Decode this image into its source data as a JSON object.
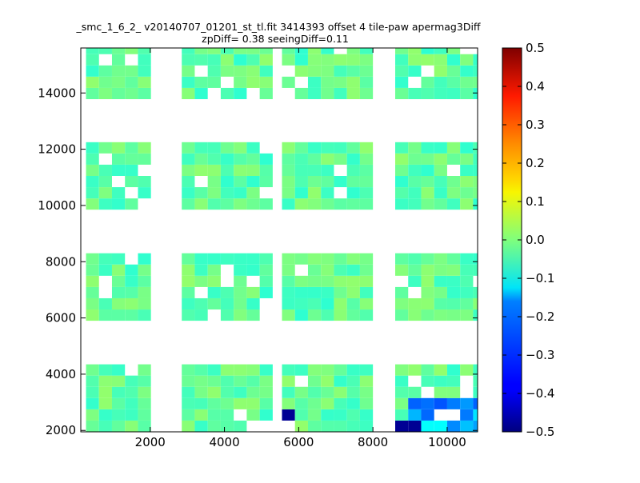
{
  "chart_data": {
    "type": "heatmap",
    "title_line1": "_smc_1_6_2_ v20140707_01201_st_tl.fit 3414393 offset 4 tile-paw apermag3Diff",
    "title_line2": "zpDiff= 0.38 seeingDiff=0.11",
    "xlabel": "",
    "ylabel": "",
    "xlim": [
      130,
      10820
    ],
    "ylim": [
      1950,
      15600
    ],
    "xticks": [
      2000,
      4000,
      6000,
      8000,
      10000
    ],
    "yticks": [
      2000,
      4000,
      6000,
      8000,
      10000,
      12000,
      14000
    ],
    "colorbar": {
      "colormap": "jet",
      "min": -0.5,
      "max": 0.5,
      "ticks": [
        "0.5",
        "0.4",
        "0.3",
        "0.2",
        "0.1",
        "0.0",
        "−0.1",
        "−0.2",
        "−0.3",
        "−0.4",
        "−0.5"
      ]
    },
    "cell_size": [
      350,
      400
    ],
    "x_origin": 130,
    "y_origin": 1950,
    "cells": [
      [
        "",
        "",
        "",
        "",
        "",
        "",
        "",
        "",
        "",
        "",
        "",
        "",
        "",
        "",
        "",
        "",
        "",
        "",
        "",
        "",
        "",
        "",
        "",
        "",
        "",
        "",
        "",
        "",
        "",
        ""
      ],
      [
        "",
        "",
        "",
        "",
        "",
        "",
        "",
        "",
        "",
        "",
        "",
        "",
        "",
        "",
        "",
        "",
        "",
        "",
        "",
        "",
        "",
        "",
        "",
        "",
        "",
        "",
        "",
        "",
        "",
        ""
      ],
      [
        "",
        "",
        "",
        "",
        "",
        "",
        "",
        "",
        "",
        "",
        "",
        "",
        "",
        "",
        "",
        "",
        "",
        "",
        "",
        "",
        "",
        "",
        "",
        "",
        "",
        "",
        "",
        "",
        "",
        ""
      ],
      [
        "",
        "",
        "",
        "",
        "",
        "",
        "",
        "",
        "",
        "",
        "",
        "",
        "",
        "",
        "",
        "",
        "",
        "",
        "",
        "",
        "",
        "",
        "",
        "",
        "",
        "",
        "",
        "",
        "",
        ""
      ],
      [
        "",
        "",
        "",
        "",
        "",
        "",
        "",
        "",
        "",
        "",
        "",
        "",
        "",
        "",
        "",
        "",
        "",
        "",
        "",
        "",
        "",
        "",
        "",
        "",
        "",
        "",
        "",
        "",
        "",
        ""
      ],
      [
        "",
        "",
        "",
        "",
        "",
        "",
        "",
        "",
        "",
        "",
        "",
        "",
        "",
        "",
        "",
        "",
        "",
        "",
        "",
        "",
        "",
        "",
        "",
        "",
        "",
        "",
        "",
        "",
        "",
        ""
      ],
      [
        "",
        "",
        "",
        "",
        "",
        "",
        "",
        "",
        "",
        "",
        "",
        "",
        "",
        "",
        "",
        "",
        "",
        "",
        "",
        "",
        "",
        "",
        "",
        "",
        "",
        "",
        "",
        "",
        "",
        ""
      ],
      [
        "",
        "",
        "",
        "",
        "",
        "",
        "",
        "",
        "",
        "",
        "",
        "",
        "",
        "",
        "",
        "",
        "",
        "",
        "",
        "",
        "",
        "",
        "",
        "",
        "",
        "",
        "",
        "",
        "",
        ""
      ]
    ],
    "blocks": [
      {
        "x0": 130,
        "y0": 1950,
        "cols": 14,
        "rows": 35
      },
      {
        "x0": 2800,
        "y0": 1950,
        "cols": 14,
        "rows": 35
      },
      {
        "x0": 5500,
        "y0": 1950,
        "cols": 14,
        "rows": 35
      },
      {
        "x0": 8600,
        "y0": 1950,
        "cols": 14,
        "rows": 35
      }
    ],
    "bands": [
      {
        "y0": 1950,
        "rows": 6
      },
      {
        "y0": 5850,
        "rows": 6
      },
      {
        "y0": 9850,
        "rows": 6
      },
      {
        "y0": 13750,
        "rows": 6
      }
    ]
  }
}
